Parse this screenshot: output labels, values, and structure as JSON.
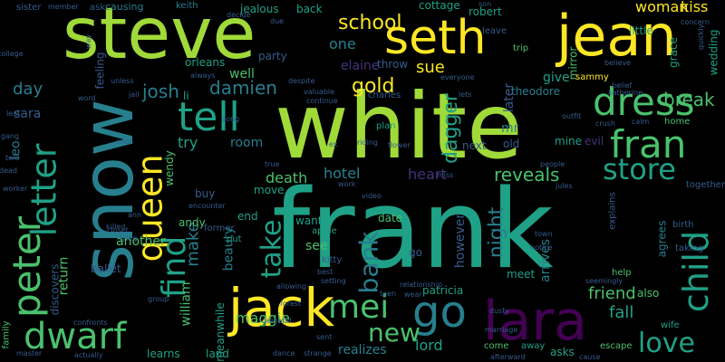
{
  "palette": {
    "background": "#000000",
    "yellow": "#fde725",
    "lime": "#a0da39",
    "green": "#4ac16d",
    "teal": "#1fa187",
    "cyan": "#277f8e",
    "blue": "#365c8d",
    "indigo": "#46327e",
    "purple": "#440154"
  },
  "words": [
    "frank",
    "white",
    "steve",
    "jean",
    "seth",
    "snow",
    "lara",
    "jack",
    "dress",
    "fran",
    "tell",
    "letter",
    "peter",
    "dwarf",
    "queen",
    "find",
    "mei",
    "go",
    "child",
    "store",
    "take",
    "love",
    "bank",
    "new",
    "school",
    "gold",
    "dagger",
    "night",
    "reveals",
    "break",
    "josh",
    "damien",
    "sue",
    "one",
    "heart",
    "hotel",
    "death",
    "try",
    "make",
    "room",
    "friend",
    "fall",
    "return",
    "ballet",
    "beauty",
    "maggie",
    "william",
    "see",
    "lord",
    "realizes",
    "however",
    "arrives",
    "later",
    "elaine",
    "another",
    "kitty",
    "date",
    "well",
    "wendy",
    "patricia",
    "woman",
    "kiss",
    "mirror",
    "give",
    "sammy",
    "theodore",
    "mr",
    "day",
    "sara",
    "leo",
    "orleans",
    "party",
    "throw",
    "keith",
    "little",
    "robert",
    "cottage",
    "jealous",
    "back",
    "causing",
    "ask",
    "sister",
    "member",
    "son",
    "leave",
    "trip",
    "grace",
    "wedding",
    "believe",
    "katherine",
    "dead",
    "mine",
    "evil",
    "old",
    "next",
    "home",
    "together",
    "birth",
    "agrees",
    "help",
    "also",
    "asks",
    "escape",
    "come",
    "away",
    "wife",
    "meet",
    "forest",
    "allowing",
    "land",
    "learns",
    "master",
    "actually",
    "confronts",
    "family",
    "meanwhile",
    "dance",
    "strange",
    "go",
    "apple",
    "want",
    "end",
    "put",
    "former",
    "andy",
    "discovers",
    "move",
    "buy",
    "worker",
    "closet",
    "feeling",
    "unless",
    "always",
    "li",
    "despite",
    "charles",
    "everyone",
    "video",
    "flower",
    "plan",
    "riding",
    "town",
    "jules",
    "people",
    "explains",
    "outfit",
    "crush",
    "calm",
    "taking",
    "notice",
    "true",
    "work",
    "miss",
    "best",
    "setting",
    "relationship",
    "demand",
    "sent",
    "afterward",
    "cause",
    "encounter",
    "song",
    "soon",
    "valuable",
    "continue",
    "ann",
    "told",
    "leaf",
    "gang",
    "college",
    "word",
    "way",
    "decide",
    "due",
    "concern",
    "quickly",
    "belief",
    "lets",
    "seemingly",
    "group",
    "wear",
    "teen",
    "marriage",
    "dusty",
    "jail",
    "killed",
    "lying",
    "ex"
  ]
}
